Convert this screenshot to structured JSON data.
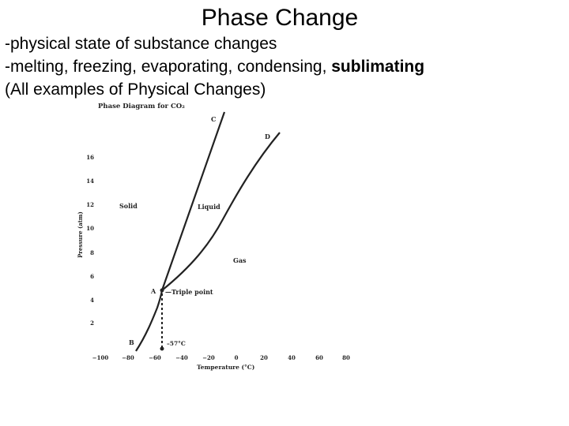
{
  "slide": {
    "title": "Phase Change",
    "bullets": [
      {
        "text": "-physical state of substance changes"
      },
      {
        "text_prefix": "-melting, freezing, evaporating, condensing, ",
        "text_bold": "sublimating"
      },
      {
        "text": "(All examples of Physical Changes)"
      }
    ]
  },
  "diagram": {
    "title": "Phase Diagram for CO₂",
    "ylabel": "Pressure (atm)",
    "xlabel": "Temperature (°C)",
    "regions": {
      "solid": "Solid",
      "liquid": "Liquid",
      "gas": "Gas"
    },
    "curve_labels": {
      "a": "A",
      "b": "B",
      "c": "C",
      "d": "D"
    },
    "annotations": {
      "triple_point": "—Triple point",
      "temp_marker": "–57°C"
    },
    "x_ticks": [
      "−100",
      "−80",
      "−60",
      "−40",
      "−20",
      "0",
      "20",
      "40",
      "60",
      "80"
    ],
    "y_ticks": [
      "2",
      "4",
      "6",
      "8",
      "10",
      "12",
      "14",
      "16"
    ],
    "colors": {
      "ink": "#222222"
    }
  }
}
